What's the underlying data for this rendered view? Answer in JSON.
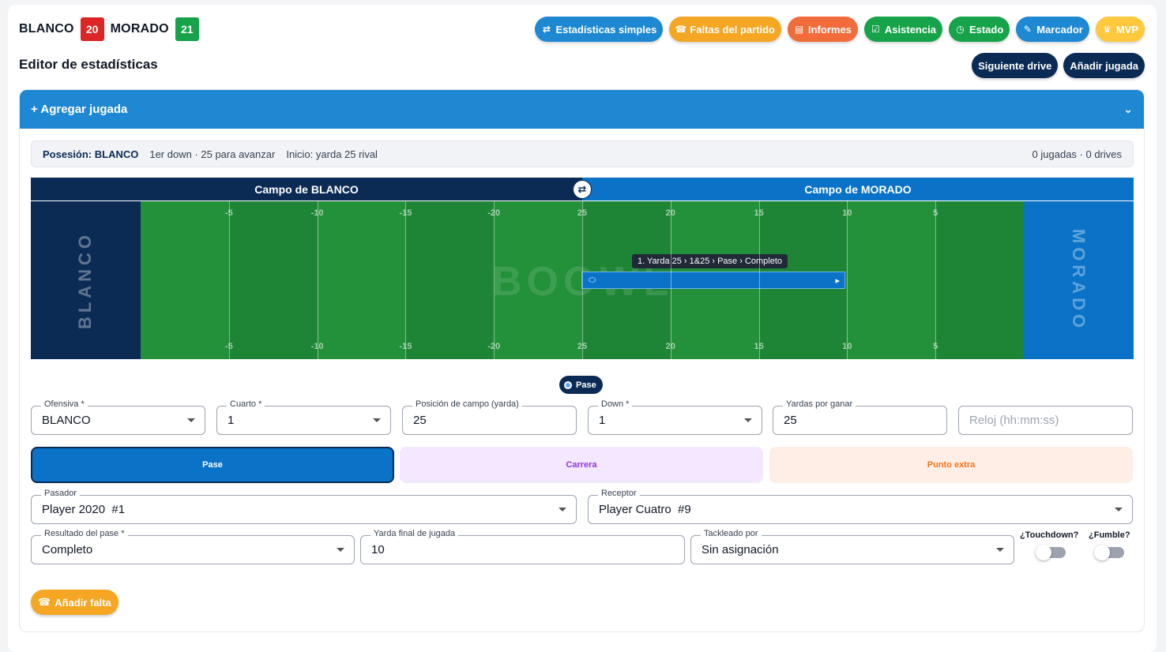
{
  "score": {
    "team_a": {
      "name": "BLANCO",
      "score": "20",
      "color": "#dc2626"
    },
    "team_b": {
      "name": "MORADO",
      "score": "21",
      "color": "#16a34a"
    }
  },
  "page_title": "Editor de estadísticas",
  "toolbar": [
    {
      "label": "Estadísticas simples",
      "icon": "swap-icon",
      "glyph": "⇄",
      "color": "#1e88d2"
    },
    {
      "label": "Faltas del partido",
      "icon": "whistle-icon",
      "glyph": "☎",
      "color": "#f5a623"
    },
    {
      "label": "Informes",
      "icon": "document-icon",
      "glyph": "▤",
      "color": "#f26b3a"
    },
    {
      "label": "Asistencia",
      "icon": "checkbox-icon",
      "glyph": "☑",
      "color": "#16a34a"
    },
    {
      "label": "Estado",
      "icon": "clock-icon",
      "glyph": "◷",
      "color": "#16a34a"
    },
    {
      "label": "Marcador",
      "icon": "pencil-icon",
      "glyph": "✎",
      "color": "#1e88d2"
    },
    {
      "label": "MVP",
      "icon": "crown-icon",
      "glyph": "♛",
      "color": "#ffc83d"
    }
  ],
  "actions": {
    "next_drive": "Siguiente drive",
    "add_play": "Añadir jugada"
  },
  "panel": {
    "title": "+ Agregar jugada"
  },
  "info": {
    "possession": "Posesión: BLANCO",
    "down_text": "1er down · 25 para avanzar",
    "start_text": "Inicio: yarda 25 rival",
    "counts": "0 jugadas · 0 drives"
  },
  "field": {
    "left_header": "Campo de BLANCO",
    "right_header": "Campo de MORADO",
    "left_endzone": "BLANCO",
    "right_endzone": "MORADO",
    "watermark": "BOOWL",
    "yard_labels": [
      "-5",
      "-10",
      "-15",
      "-20",
      "25",
      "20",
      "15",
      "10",
      "5"
    ],
    "play_tooltip": "1. Yarda 25 › 1&25 › Pase › Completo",
    "current_play_type": "Pase"
  },
  "form": {
    "offense": {
      "label": "Ofensiva *",
      "value": "BLANCO"
    },
    "quarter": {
      "label": "Cuarto *",
      "value": "1"
    },
    "field_position": {
      "label": "Posición de campo (yarda)",
      "value": "25"
    },
    "down": {
      "label": "Down *",
      "value": "1"
    },
    "yards_to_go": {
      "label": "Yardas por ganar",
      "value": "25"
    },
    "clock": {
      "placeholder": "Reloj (hh:mm:ss)"
    },
    "modes": [
      "Pase",
      "Carrera",
      "Punto extra"
    ],
    "passer": {
      "label": "Pasador",
      "value": "Player 2020  #1"
    },
    "receiver": {
      "label": "Receptor",
      "value": "Player Cuatro  #9"
    },
    "pass_result": {
      "label": "Resultado del pase *",
      "value": "Completo"
    },
    "final_yard": {
      "label": "Yarda final de jugada",
      "value": "10"
    },
    "tackled_by": {
      "label": "Tackleado por",
      "value": "Sin asignación"
    },
    "touchdown": {
      "label": "¿Touchdown?",
      "on": false
    },
    "fumble": {
      "label": "¿Fumble?",
      "on": false
    }
  },
  "add_foul": "Añadir falta"
}
